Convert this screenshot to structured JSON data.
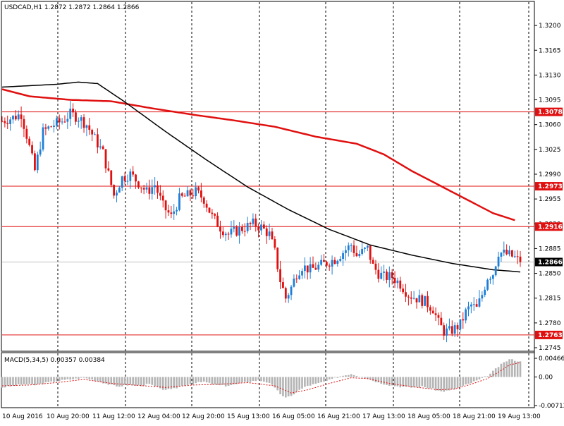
{
  "header": {
    "text": "USDCAD,H1  1.2872 1.2872 1.2864 1.2866"
  },
  "macd_header": {
    "text": "MACD(5,34,5) 0.00357 0.00384"
  },
  "colors": {
    "background": "#ffffff",
    "up_candle": "#1f7fd6",
    "down_candle": "#e01010",
    "slow_ma": "#e01010",
    "fast_ma": "#000000",
    "level_line": "#e01010",
    "macd_hist": "#b4b4b4",
    "macd_signal": "#e01010",
    "grid": "#000000"
  },
  "chart_data": [
    {
      "type": "candlestick",
      "title": "USDCAD,H1",
      "ohlc_readout": {
        "open": 1.2872,
        "high": 1.2872,
        "low": 1.2864,
        "close": 1.2866
      },
      "ylim": [
        1.2744,
        1.3226
      ],
      "y_ticks": [
        "1.3200",
        "1.3165",
        "1.3130",
        "1.3095",
        "1.3060",
        "1.3025",
        "1.2990",
        "1.2955",
        "1.2920",
        "1.2885",
        "1.2850",
        "1.2815",
        "1.2780",
        "1.2745"
      ],
      "x_ticks": [
        "10 Aug 2016",
        "10 Aug 20:00",
        "11 Aug 12:00",
        "12 Aug 04:00",
        "12 Aug 20:00",
        "15 Aug 13:00",
        "16 Aug 05:00",
        "16 Aug 21:00",
        "17 Aug 13:00",
        "18 Aug 05:00",
        "18 Aug 21:00",
        "19 Aug 13:00"
      ],
      "levels": [
        {
          "label": "1.3078",
          "value": 1.3078
        },
        {
          "label": "1.2973",
          "value": 1.2973
        },
        {
          "label": "1.2916",
          "value": 1.2916
        },
        {
          "label": "1.2763",
          "value": 1.2763
        }
      ],
      "current_price": {
        "label": "1.2866",
        "value": 1.2866
      },
      "grid": "vertical dashed",
      "price_anchors": [
        [
          0,
          1.3065
        ],
        [
          4,
          1.307
        ],
        [
          7,
          1.3075
        ],
        [
          9,
          1.3045
        ],
        [
          12,
          1.2995
        ],
        [
          15,
          1.305
        ],
        [
          19,
          1.306
        ],
        [
          22,
          1.3065
        ],
        [
          25,
          1.3075
        ],
        [
          28,
          1.307
        ],
        [
          31,
          1.306
        ],
        [
          34,
          1.304
        ],
        [
          37,
          1.302
        ],
        [
          39,
          1.299
        ],
        [
          41,
          1.296
        ],
        [
          44,
          1.2985
        ],
        [
          47,
          1.299
        ],
        [
          50,
          1.2978
        ],
        [
          53,
          1.2965
        ],
        [
          56,
          1.2975
        ],
        [
          59,
          1.2945
        ],
        [
          62,
          1.293
        ],
        [
          65,
          1.2955
        ],
        [
          68,
          1.296
        ],
        [
          71,
          1.2965
        ],
        [
          74,
          1.2955
        ],
        [
          77,
          1.293
        ],
        [
          80,
          1.2915
        ],
        [
          83,
          1.2905
        ],
        [
          86,
          1.291
        ],
        [
          89,
          1.2915
        ],
        [
          92,
          1.292
        ],
        [
          95,
          1.2915
        ],
        [
          98,
          1.2905
        ],
        [
          100,
          1.288
        ],
        [
          102,
          1.284
        ],
        [
          104,
          1.2815
        ],
        [
          106,
          1.283
        ],
        [
          108,
          1.285
        ],
        [
          110,
          1.286
        ],
        [
          113,
          1.2855
        ],
        [
          116,
          1.286
        ],
        [
          119,
          1.2865
        ],
        [
          122,
          1.287
        ],
        [
          125,
          1.288
        ],
        [
          128,
          1.289
        ],
        [
          130,
          1.2875
        ],
        [
          132,
          1.288
        ],
        [
          134,
          1.2885
        ],
        [
          136,
          1.286
        ],
        [
          138,
          1.285
        ],
        [
          140,
          1.2845
        ],
        [
          143,
          1.2845
        ],
        [
          146,
          1.2835
        ],
        [
          149,
          1.282
        ],
        [
          152,
          1.2815
        ],
        [
          155,
          1.281
        ],
        [
          158,
          1.28
        ],
        [
          160,
          1.278
        ],
        [
          162,
          1.2768
        ],
        [
          164,
          1.2768
        ],
        [
          166,
          1.2772
        ],
        [
          168,
          1.2778
        ],
        [
          170,
          1.2795
        ],
        [
          172,
          1.2805
        ],
        [
          174,
          1.28
        ],
        [
          176,
          1.282
        ],
        [
          178,
          1.2845
        ],
        [
          180,
          1.285
        ],
        [
          182,
          1.288
        ],
        [
          184,
          1.2878
        ],
        [
          186,
          1.2876
        ],
        [
          188,
          1.2872
        ],
        [
          190,
          1.2866
        ]
      ],
      "series": [
        {
          "name": "",
          "role": "slow moving average",
          "color": "#e01010",
          "points": [
            [
              0,
              1.311
            ],
            [
              10,
              1.31
            ],
            [
              25,
              1.3095
            ],
            [
              40,
              1.3093
            ],
            [
              55,
              1.3083
            ],
            [
              70,
              1.3074
            ],
            [
              85,
              1.3066
            ],
            [
              100,
              1.3057
            ],
            [
              115,
              1.3043
            ],
            [
              130,
              1.3033
            ],
            [
              140,
              1.3018
            ],
            [
              150,
              1.2995
            ],
            [
              160,
              1.2975
            ],
            [
              170,
              1.2955
            ],
            [
              180,
              1.2935
            ],
            [
              188,
              1.2925
            ]
          ]
        },
        {
          "name": "",
          "role": "fast moving average",
          "color": "#000000",
          "points": [
            [
              0,
              1.3113
            ],
            [
              10,
              1.3115
            ],
            [
              20,
              1.3117
            ],
            [
              28,
              1.312
            ],
            [
              35,
              1.3118
            ],
            [
              45,
              1.3092
            ],
            [
              60,
              1.305
            ],
            [
              75,
              1.301
            ],
            [
              90,
              1.2972
            ],
            [
              105,
              1.294
            ],
            [
              120,
              1.2912
            ],
            [
              135,
              1.289
            ],
            [
              150,
              1.2876
            ],
            [
              165,
              1.2864
            ],
            [
              180,
              1.2855
            ],
            [
              190,
              1.2852
            ]
          ]
        }
      ]
    },
    {
      "type": "histogram",
      "title": "MACD(5,34,5)",
      "values_readout": [
        0.00357,
        0.00384
      ],
      "y_ticks": [
        "0.00466",
        "0.00",
        "-0.00712"
      ],
      "ylim": [
        -0.00712,
        0.00466
      ],
      "hist_anchors": [
        [
          0,
          -0.0026
        ],
        [
          4,
          -0.0022
        ],
        [
          8,
          -0.0018
        ],
        [
          12,
          -0.002
        ],
        [
          16,
          -0.0015
        ],
        [
          20,
          -0.001
        ],
        [
          25,
          -0.0006
        ],
        [
          30,
          -0.0002
        ],
        [
          34,
          -0.0008
        ],
        [
          38,
          -0.0016
        ],
        [
          42,
          -0.0024
        ],
        [
          46,
          -0.002
        ],
        [
          50,
          -0.0022
        ],
        [
          54,
          -0.0018
        ],
        [
          58,
          -0.003
        ],
        [
          62,
          -0.0032
        ],
        [
          66,
          -0.0022
        ],
        [
          70,
          -0.0016
        ],
        [
          74,
          -0.0012
        ],
        [
          78,
          -0.002
        ],
        [
          82,
          -0.0022
        ],
        [
          86,
          -0.0018
        ],
        [
          90,
          -0.0012
        ],
        [
          94,
          -0.0008
        ],
        [
          98,
          -0.0014
        ],
        [
          102,
          -0.0042
        ],
        [
          104,
          -0.0052
        ],
        [
          106,
          -0.0048
        ],
        [
          108,
          -0.0036
        ],
        [
          112,
          -0.0022
        ],
        [
          116,
          -0.0016
        ],
        [
          120,
          -0.0008
        ],
        [
          124,
          0.0002
        ],
        [
          128,
          0.0008
        ],
        [
          130,
          0.0004
        ],
        [
          134,
          -0.0004
        ],
        [
          138,
          -0.0014
        ],
        [
          142,
          -0.002
        ],
        [
          146,
          -0.0024
        ],
        [
          150,
          -0.0026
        ],
        [
          154,
          -0.0024
        ],
        [
          158,
          -0.003
        ],
        [
          161,
          -0.0036
        ],
        [
          164,
          -0.0034
        ],
        [
          167,
          -0.0028
        ],
        [
          170,
          -0.002
        ],
        [
          173,
          -0.0012
        ],
        [
          176,
          -0.0004
        ],
        [
          179,
          0.0008
        ],
        [
          182,
          0.0026
        ],
        [
          184,
          0.0036
        ],
        [
          186,
          0.0044
        ],
        [
          188,
          0.0042
        ],
        [
          190,
          0.0038
        ]
      ],
      "signal_anchors": [
        [
          0,
          -0.0022
        ],
        [
          10,
          -0.002
        ],
        [
          20,
          -0.0014
        ],
        [
          30,
          -0.0006
        ],
        [
          40,
          -0.0016
        ],
        [
          50,
          -0.0021
        ],
        [
          60,
          -0.0026
        ],
        [
          70,
          -0.002
        ],
        [
          80,
          -0.0018
        ],
        [
          90,
          -0.0014
        ],
        [
          100,
          -0.0022
        ],
        [
          106,
          -0.004
        ],
        [
          112,
          -0.0032
        ],
        [
          120,
          -0.0016
        ],
        [
          128,
          -0.0002
        ],
        [
          134,
          -0.0004
        ],
        [
          142,
          -0.0016
        ],
        [
          150,
          -0.0024
        ],
        [
          160,
          -0.0032
        ],
        [
          166,
          -0.003
        ],
        [
          172,
          -0.0018
        ],
        [
          178,
          -0.0004
        ],
        [
          182,
          0.0012
        ],
        [
          186,
          0.003
        ],
        [
          190,
          0.0036
        ]
      ]
    }
  ]
}
